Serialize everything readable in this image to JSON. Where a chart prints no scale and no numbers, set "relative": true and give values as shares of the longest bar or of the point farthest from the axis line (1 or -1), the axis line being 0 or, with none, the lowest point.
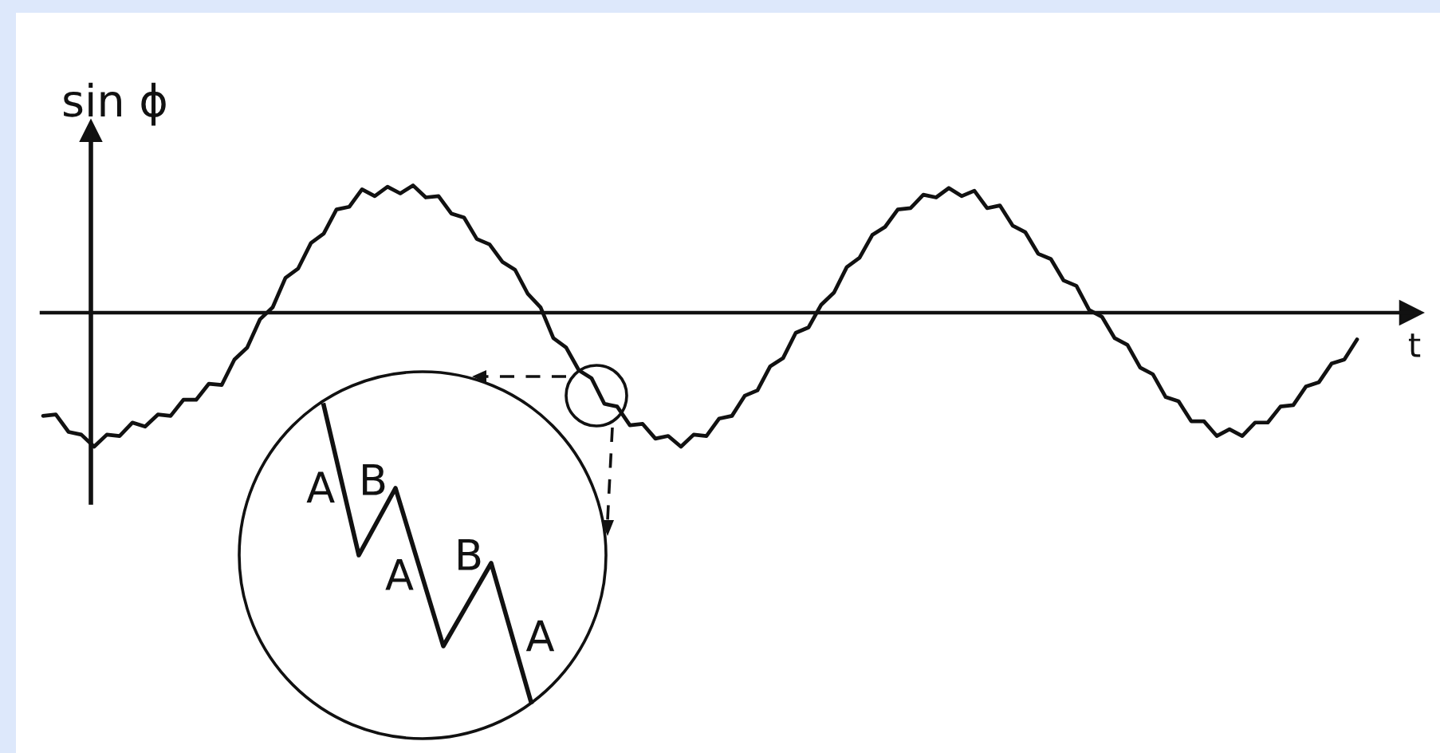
{
  "chart_data": {
    "type": "line",
    "ylabel": "sin ϕ",
    "xlabel": "t",
    "relative": true,
    "tick_labels": false,
    "color": "#111111",
    "categories": [
      null,
      null,
      null,
      null,
      null,
      null,
      null,
      null,
      null,
      null,
      null,
      null,
      null,
      null,
      null,
      null,
      null,
      null,
      null,
      null,
      null,
      null,
      null,
      null,
      null,
      null,
      null,
      null,
      null,
      null,
      null,
      null,
      null,
      null,
      null,
      null,
      null,
      null,
      null,
      null,
      null,
      null,
      null,
      null,
      null,
      null,
      null,
      null,
      null,
      null,
      null,
      null,
      null,
      null,
      null,
      null,
      null,
      null,
      null,
      null,
      null,
      null,
      null,
      null,
      null,
      null,
      null,
      null,
      null,
      null,
      null,
      null,
      null,
      null,
      null,
      null,
      null,
      null,
      null,
      null,
      null,
      null,
      null,
      null,
      null,
      null,
      null,
      null,
      null,
      null,
      null,
      null,
      null,
      null,
      null,
      null,
      null,
      null,
      null,
      null,
      null,
      null,
      null,
      null
    ],
    "values": [
      -0.77,
      -0.76,
      -0.89,
      -0.91,
      -1.0,
      -0.91,
      -0.92,
      -0.82,
      -0.85,
      -0.76,
      -0.77,
      -0.65,
      -0.65,
      -0.53,
      -0.54,
      -0.35,
      -0.26,
      -0.05,
      0.04,
      0.26,
      0.33,
      0.52,
      0.59,
      0.77,
      0.79,
      0.92,
      0.87,
      0.94,
      0.89,
      0.95,
      0.86,
      0.87,
      0.74,
      0.71,
      0.55,
      0.51,
      0.38,
      0.32,
      0.14,
      0.04,
      -0.19,
      -0.26,
      -0.43,
      -0.49,
      -0.68,
      -0.7,
      -0.84,
      -0.83,
      -0.94,
      -0.92,
      -1.0,
      -0.91,
      -0.92,
      -0.79,
      -0.77,
      -0.62,
      -0.58,
      -0.4,
      -0.34,
      -0.15,
      -0.11,
      0.06,
      0.15,
      0.34,
      0.41,
      0.58,
      0.64,
      0.77,
      0.78,
      0.88,
      0.86,
      0.93,
      0.87,
      0.91,
      0.78,
      0.8,
      0.65,
      0.6,
      0.44,
      0.4,
      0.24,
      0.2,
      0.02,
      -0.03,
      -0.19,
      -0.24,
      -0.41,
      -0.46,
      -0.63,
      -0.66,
      -0.81,
      -0.81,
      -0.92,
      -0.87,
      -0.92,
      -0.82,
      -0.82,
      -0.7,
      -0.69,
      -0.55,
      -0.52,
      -0.38,
      -0.35,
      -0.2
    ],
    "annotations": [
      "A",
      "B",
      "A",
      "B",
      "A"
    ]
  }
}
